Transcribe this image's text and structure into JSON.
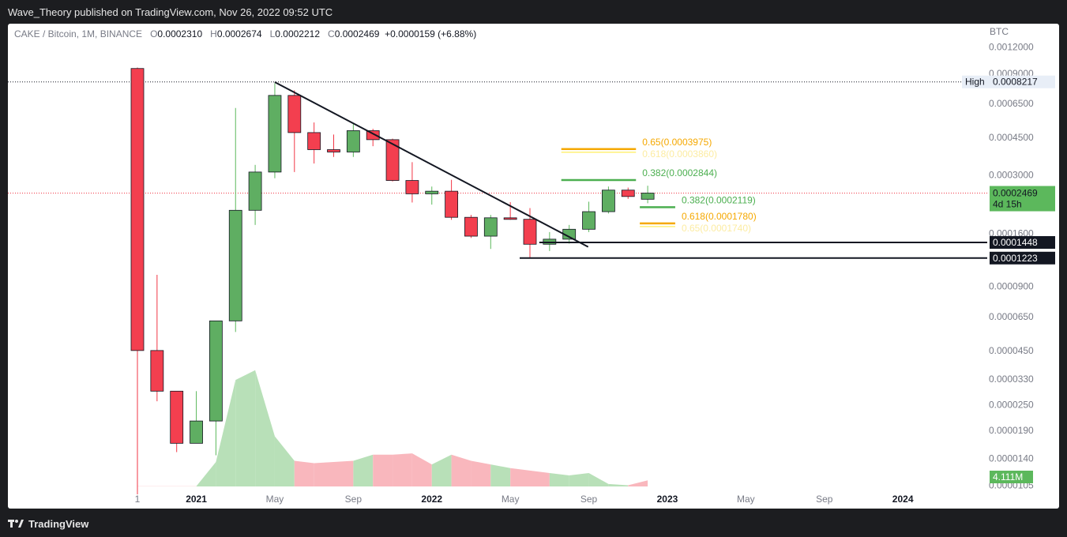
{
  "header": {
    "publisher_text": "Wave_Theory published on TradingView.com, Nov 26, 2022 09:52 UTC"
  },
  "legend": {
    "symbol": "CAKE / Bitcoin, 1M, BINANCE",
    "open_label": "O",
    "open": "0.0002310",
    "high_label": "H",
    "high": "0.0002674",
    "low_label": "L",
    "low": "0.0002212",
    "close_label": "C",
    "close": "0.0002469",
    "change": "+0.0000159 (+6.88%)"
  },
  "footer": {
    "brand": "TradingView"
  },
  "colors": {
    "up": "#5cb85c",
    "down": "#f23645",
    "up_fill": "#5fae62",
    "down_fill": "#f33f4f",
    "vol_up": "#b8e0b8",
    "vol_down": "#f9b7bd",
    "fib_orange": "#f5a800",
    "fib_green": "#4caf50"
  },
  "chart_data": {
    "type": "candlestick",
    "interval": "1M",
    "quote_currency": "BTC",
    "scale": "log",
    "ylim": [
      9.5e-06,
      0.0013
    ],
    "y_ticks": [
      "0.0012000",
      "0.0009000",
      "0.0006500",
      "0.0004500",
      "0.0003000",
      "0.0001600",
      "0.0000900",
      "0.0000650",
      "0.0000450",
      "0.0000330",
      "0.0000250",
      "0.0000190",
      "0.0000140",
      "0.0000105"
    ],
    "x_labels": [
      {
        "text": "1",
        "bold": false,
        "month": "2020-10"
      },
      {
        "text": "2021",
        "bold": true,
        "month": "2021-01"
      },
      {
        "text": "May",
        "bold": false,
        "month": "2021-05"
      },
      {
        "text": "Sep",
        "bold": false,
        "month": "2021-09"
      },
      {
        "text": "2022",
        "bold": true,
        "month": "2022-01"
      },
      {
        "text": "May",
        "bold": false,
        "month": "2022-05"
      },
      {
        "text": "Sep",
        "bold": false,
        "month": "2022-09"
      },
      {
        "text": "2023",
        "bold": true,
        "month": "2023-01"
      },
      {
        "text": "May",
        "bold": false,
        "month": "2023-05"
      },
      {
        "text": "Sep",
        "bold": false,
        "month": "2023-09"
      },
      {
        "text": "2024",
        "bold": true,
        "month": "2024-01"
      }
    ],
    "candles": [
      {
        "date": "2020-10",
        "o": 0.00095,
        "h": 0.00096,
        "l": 9.5e-06,
        "c": 4.5e-05
      },
      {
        "date": "2020-11",
        "o": 4.5e-05,
        "h": 0.000102,
        "l": 2.6e-05,
        "c": 2.9e-05
      },
      {
        "date": "2020-12",
        "o": 2.9e-05,
        "h": 2.9e-05,
        "l": 1.5e-05,
        "c": 1.65e-05
      },
      {
        "date": "2021-01",
        "o": 1.65e-05,
        "h": 2.9e-05,
        "l": 1.65e-05,
        "c": 2.1e-05
      },
      {
        "date": "2021-02",
        "o": 2.1e-05,
        "h": 6.2e-05,
        "l": 1.45e-05,
        "c": 6.2e-05
      },
      {
        "date": "2021-03",
        "o": 6.2e-05,
        "h": 0.00062,
        "l": 5.5e-05,
        "c": 0.000205
      },
      {
        "date": "2021-04",
        "o": 0.000205,
        "h": 0.000335,
        "l": 0.000175,
        "c": 0.00031
      },
      {
        "date": "2021-05",
        "o": 0.00031,
        "h": 0.00081,
        "l": 0.00029,
        "c": 0.00071
      },
      {
        "date": "2021-06",
        "o": 0.00071,
        "h": 0.00075,
        "l": 0.00031,
        "c": 0.000475
      },
      {
        "date": "2021-07",
        "o": 0.000475,
        "h": 0.00053,
        "l": 0.00034,
        "c": 0.000395
      },
      {
        "date": "2021-08",
        "o": 0.000395,
        "h": 0.000465,
        "l": 0.000365,
        "c": 0.000385
      },
      {
        "date": "2021-09",
        "o": 0.000385,
        "h": 0.00052,
        "l": 0.000365,
        "c": 0.000485
      },
      {
        "date": "2021-10",
        "o": 0.000485,
        "h": 0.000495,
        "l": 0.00041,
        "c": 0.00044
      },
      {
        "date": "2021-11",
        "o": 0.00044,
        "h": 0.000445,
        "l": 0.00028,
        "c": 0.000283
      },
      {
        "date": "2021-12",
        "o": 0.000283,
        "h": 0.000345,
        "l": 0.000223,
        "c": 0.000245
      },
      {
        "date": "2022-01",
        "o": 0.000245,
        "h": 0.000265,
        "l": 0.000218,
        "c": 0.000252
      },
      {
        "date": "2022-02",
        "o": 0.000252,
        "h": 0.000285,
        "l": 0.000185,
        "c": 0.00019
      },
      {
        "date": "2022-03",
        "o": 0.00019,
        "h": 0.000195,
        "l": 0.000152,
        "c": 0.000155
      },
      {
        "date": "2022-04",
        "o": 0.000155,
        "h": 0.000195,
        "l": 0.000135,
        "c": 0.000189
      },
      {
        "date": "2022-05",
        "o": 0.000189,
        "h": 0.000224,
        "l": 0.000185,
        "c": 0.000186
      },
      {
        "date": "2022-06",
        "o": 0.000186,
        "h": 0.00021,
        "l": 0.0001223,
        "c": 0.000142
      },
      {
        "date": "2022-07",
        "o": 0.000142,
        "h": 0.000162,
        "l": 0.000132,
        "c": 0.00015
      },
      {
        "date": "2022-08",
        "o": 0.00015,
        "h": 0.000175,
        "l": 0.000143,
        "c": 0.000167
      },
      {
        "date": "2022-09",
        "o": 0.000167,
        "h": 0.000225,
        "l": 0.000162,
        "c": 0.000202
      },
      {
        "date": "2022-10",
        "o": 0.000202,
        "h": 0.000265,
        "l": 0.000198,
        "c": 0.000255
      },
      {
        "date": "2022-11",
        "o": 0.000255,
        "h": 0.000262,
        "l": 0.000232,
        "c": 0.000238
      },
      {
        "date": "2022-12",
        "o": 0.000231,
        "h": 0.0002674,
        "l": 0.0002212,
        "c": 0.0002469
      }
    ],
    "volume": [
      0.002,
      0.002,
      0.002,
      0.002,
      0.2,
      0.87,
      0.95,
      0.41,
      0.21,
      0.19,
      0.2,
      0.21,
      0.26,
      0.26,
      0.27,
      0.18,
      0.26,
      0.21,
      0.18,
      0.15,
      0.13,
      0.11,
      0.09,
      0.11,
      0.02,
      0.01,
      0.05
    ],
    "volume_last_label": "4.111M",
    "trendline": {
      "from": {
        "date": "2021-05",
        "price": 0.00082
      },
      "to": {
        "date": "2022-08",
        "price": 0.000138
      }
    },
    "high_marker": {
      "label": "High",
      "value": "0.0008217",
      "price": 0.0008217
    },
    "current_price": {
      "value": "0.0002469",
      "countdown": "4d 15h",
      "price": 0.0002469
    },
    "levels": [
      {
        "value": "0.0001448",
        "price": 0.0001448,
        "from": "2022-07"
      },
      {
        "value": "0.0001223",
        "price": 0.0001223,
        "from": "2022-06"
      }
    ],
    "fib_annotations": [
      {
        "label": "0.65(0.0003975)",
        "price": 0.0003975,
        "color": "orange",
        "ghost": "0.618(0.0003860)",
        "from": "2022-08",
        "to": "2022-11"
      },
      {
        "label": "0.382(0.0002844)",
        "price": 0.0002844,
        "color": "green",
        "from": "2022-08",
        "to": "2022-11"
      },
      {
        "label": "0.382(0.0002119)",
        "price": 0.0002119,
        "color": "green",
        "from": "2022-12",
        "to": "2023-01"
      },
      {
        "label": "0.618(0.0001780)",
        "price": 0.000178,
        "color": "orange",
        "ghost": "0.65(0.0001740)",
        "from": "2022-12",
        "to": "2023-01"
      }
    ]
  }
}
